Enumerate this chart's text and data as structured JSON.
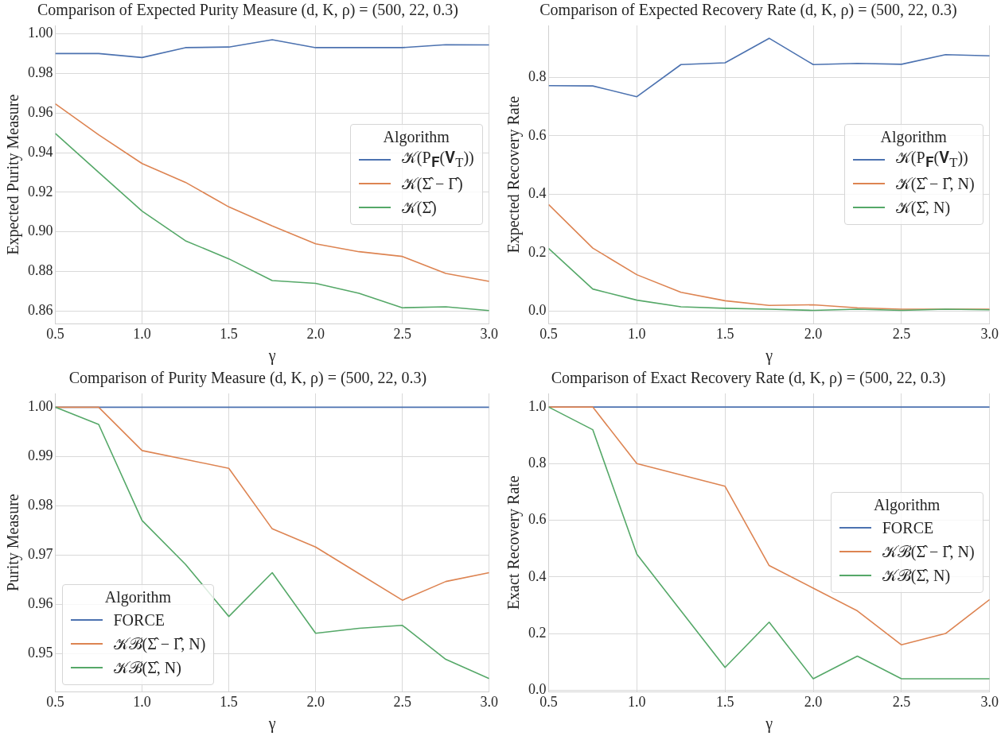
{
  "chart_data": [
    {
      "type": "line",
      "title": "Comparison of Expected Purity Measure (d, K, ρ) = (500, 22, 0.3)",
      "xlabel": "γ",
      "ylabel": "Expected Purity Measure",
      "legend_title": "Algorithm",
      "legend": "right",
      "grid": true,
      "x": [
        0.5,
        0.75,
        1.0,
        1.25,
        1.5,
        1.75,
        2.0,
        2.25,
        2.5,
        2.75,
        3.0
      ],
      "xlim": [
        0.5,
        3.0
      ],
      "xticks": [
        0.5,
        {
          "value": 1,
          "label": "1.0"
        },
        1.5,
        {
          "value": 2,
          "label": "2.0"
        },
        2.5,
        {
          "value": 3,
          "label": "3.0"
        }
      ],
      "ylim": [
        0.8536,
        1.0042
      ],
      "yticks": [
        {
          "value": 0.86,
          "label": "0.86"
        },
        {
          "value": 0.88,
          "label": "0.88"
        },
        {
          "value": 0.9,
          "label": "0.90"
        },
        {
          "value": 0.92,
          "label": "0.92"
        },
        {
          "value": 0.94,
          "label": "0.94"
        },
        {
          "value": 0.96,
          "label": "0.96"
        },
        {
          "value": 0.98,
          "label": "0.98"
        },
        {
          "value": 1,
          "label": "1.00"
        }
      ],
      "series": [
        {
          "name": "𝒦(P$_{𝐅}$(𝐕$_{T}$))",
          "color": "#4c72b0",
          "values": [
            0.99,
            0.99,
            0.988,
            0.993,
            0.9933,
            0.997,
            0.993,
            0.993,
            0.993,
            0.9945,
            0.9944
          ]
        },
        {
          "name": "𝒦(Σ̂ − Γ̂)",
          "color": "#dd8452",
          "values": [
            0.9646,
            0.949,
            0.9345,
            0.925,
            0.9126,
            0.903,
            0.894,
            0.89,
            0.8876,
            0.879,
            0.875
          ]
        },
        {
          "name": "𝒦(Σ̂)",
          "color": "#55a868",
          "values": [
            0.9497,
            0.93,
            0.9105,
            0.8955,
            0.8864,
            0.8754,
            0.874,
            0.869,
            0.8617,
            0.8622,
            0.8603
          ]
        }
      ]
    },
    {
      "type": "line",
      "title": "Comparison of Expected Recovery Rate (d, K, ρ) = (500, 22, 0.3)",
      "xlabel": "γ",
      "ylabel": "Expected Recovery Rate",
      "legend_title": "Algorithm",
      "legend": "right",
      "grid": true,
      "x": [
        0.5,
        0.75,
        1.0,
        1.25,
        1.5,
        1.75,
        2.0,
        2.25,
        2.5,
        2.75,
        3.0
      ],
      "xlim": [
        0.5,
        3.0
      ],
      "xticks": [
        0.5,
        {
          "value": 1,
          "label": "1.0"
        },
        1.5,
        {
          "value": 2,
          "label": "2.0"
        },
        2.5,
        {
          "value": 3,
          "label": "3.0"
        }
      ],
      "ylim": [
        -0.043,
        0.978
      ],
      "yticks": [
        {
          "value": 0,
          "label": "0.0"
        },
        0.2,
        0.4,
        0.6,
        0.8
      ],
      "series": [
        {
          "name": "𝒦(P$_{𝐅}$(𝐕$_{T}$))",
          "color": "#4c72b0",
          "values": [
            0.772,
            0.771,
            0.734,
            0.844,
            0.85,
            0.934,
            0.844,
            0.848,
            0.845,
            0.878,
            0.874
          ]
        },
        {
          "name": "𝒦(Σ̂ − Γ̂, N)",
          "color": "#dd8452",
          "values": [
            0.365,
            0.216,
            0.125,
            0.065,
            0.036,
            0.02,
            0.022,
            0.012,
            0.007,
            0.007,
            0.007
          ]
        },
        {
          "name": "𝒦(Σ̂, N)",
          "color": "#55a868",
          "values": [
            0.215,
            0.076,
            0.038,
            0.015,
            0.01,
            0.007,
            0.003,
            0.007,
            0.003,
            0.007,
            0.005
          ]
        }
      ]
    },
    {
      "type": "line",
      "title": "Comparison of Purity Measure (d, K, ρ) = (500, 22, 0.3)",
      "xlabel": "γ",
      "ylabel": "Purity Measure",
      "legend_title": "Algorithm",
      "legend": "bottom left",
      "grid": true,
      "x": [
        0.5,
        0.75,
        1.0,
        1.25,
        1.5,
        1.75,
        2.0,
        2.25,
        2.5,
        2.75,
        3.0
      ],
      "xlim": [
        0.5,
        3.0
      ],
      "xticks": [
        0.5,
        {
          "value": 1,
          "label": "1.0"
        },
        1.5,
        {
          "value": 2,
          "label": "2.0"
        },
        2.5,
        {
          "value": 3,
          "label": "3.0"
        }
      ],
      "ylim": [
        0.9422,
        1.0028
      ],
      "yticks": [
        {
          "value": 0.95,
          "label": "0.95"
        },
        {
          "value": 0.96,
          "label": "0.96"
        },
        {
          "value": 0.97,
          "label": "0.97"
        },
        {
          "value": 0.98,
          "label": "0.98"
        },
        {
          "value": 0.99,
          "label": "0.99"
        },
        {
          "value": 1,
          "label": "1.00"
        }
      ],
      "series": [
        {
          "name": "FORCE",
          "color": "#4c72b0",
          "values": [
            1,
            1,
            1,
            1,
            1,
            1,
            1,
            1,
            1,
            1,
            1
          ]
        },
        {
          "name": "𝒦ℬ(Σ̂ − Γ̂, N)",
          "color": "#dd8452",
          "values": [
            1,
            1,
            0.9912,
            0.9894,
            0.9876,
            0.9753,
            0.9716,
            0.9662,
            0.9608,
            0.9646,
            0.9664
          ]
        },
        {
          "name": "𝒦ℬ(Σ̂, N)",
          "color": "#55a868",
          "values": [
            1,
            0.9965,
            0.977,
            0.9681,
            0.9575,
            0.9664,
            0.9541,
            0.9551,
            0.9557,
            0.9488,
            0.9449
          ]
        }
      ]
    },
    {
      "type": "line",
      "title": "Comparison of Exact Recovery Rate (d, K, ρ) = (500, 22, 0.3)",
      "xlabel": "γ",
      "ylabel": "Exact Recovery Rate",
      "legend_title": "Algorithm",
      "legend": "right",
      "grid": true,
      "x": [
        0.5,
        0.75,
        1.0,
        1.25,
        1.5,
        1.75,
        2.0,
        2.25,
        2.5,
        2.75,
        3.0
      ],
      "xlim": [
        0.5,
        3.0
      ],
      "xticks": [
        0.5,
        {
          "value": 1,
          "label": "1.0"
        },
        1.5,
        {
          "value": 2,
          "label": "2.0"
        },
        2.5,
        {
          "value": 3,
          "label": "3.0"
        }
      ],
      "ylim": [
        -0.006,
        1.048
      ],
      "yticks": [
        {
          "value": 0,
          "label": "0.0"
        },
        0.2,
        0.4,
        0.6,
        0.8,
        {
          "value": 1,
          "label": "1.0"
        }
      ],
      "series": [
        {
          "name": "FORCE",
          "color": "#4c72b0",
          "values": [
            1,
            1,
            1,
            1,
            1,
            1,
            1,
            1,
            1,
            1,
            1
          ]
        },
        {
          "name": "𝒦ℬ(Σ̂ − Γ̂, N)",
          "color": "#dd8452",
          "values": [
            1,
            1,
            0.8,
            0.76,
            0.72,
            0.44,
            0.36,
            0.28,
            0.16,
            0.2,
            0.32
          ]
        },
        {
          "name": "𝒦ℬ(Σ̂, N)",
          "color": "#55a868",
          "values": [
            1,
            0.92,
            0.48,
            0.28,
            0.08,
            0.24,
            0.04,
            0.12,
            0.04,
            0.04,
            0.04
          ]
        }
      ]
    }
  ]
}
